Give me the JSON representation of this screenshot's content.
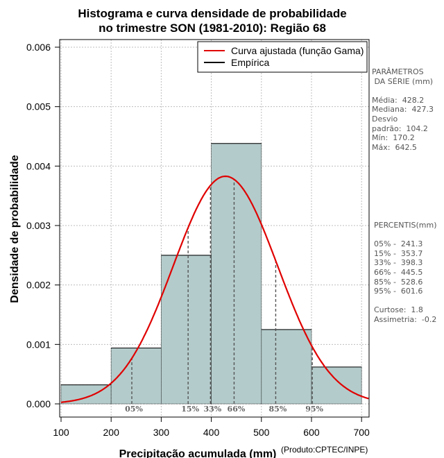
{
  "chart_data": {
    "type": "bar",
    "title_lines": [
      "Histograma e curva densidade de probabilidade",
      "no trimestre SON (1981-2010): Região 68"
    ],
    "xlabel": "Precipitação acumulada (mm)",
    "ylabel": "Densidade de probabilidade",
    "credit": "(Produto:CPTEC/INPE)",
    "xlim": [
      100,
      715
    ],
    "ylim": [
      0,
      0.0062
    ],
    "x_ticks": [
      100,
      200,
      300,
      400,
      500,
      600,
      700
    ],
    "x_tick_labels": [
      "100",
      "200",
      "300",
      "400",
      "500",
      "600",
      "700"
    ],
    "y_ticks": [
      0,
      0.001,
      0.002,
      0.003,
      0.004,
      0.005,
      0.006
    ],
    "y_tick_labels": [
      "0.000",
      "0.001",
      "0.002",
      "0.003",
      "0.004",
      "0.005",
      "0.006"
    ],
    "grid": true,
    "bins": [
      {
        "x0": 100,
        "x1": 200,
        "density": 0.00032
      },
      {
        "x0": 200,
        "x1": 300,
        "density": 0.00094
      },
      {
        "x0": 300,
        "x1": 400,
        "density": 0.0025
      },
      {
        "x0": 400,
        "x1": 500,
        "density": 0.00438
      },
      {
        "x0": 500,
        "x1": 600,
        "density": 0.00125
      },
      {
        "x0": 600,
        "x1": 700,
        "density": 0.00062
      }
    ],
    "bar_fill": "#b4cbcb",
    "curve_color": "#e00000",
    "curve": {
      "mean": 428.2,
      "sd": 104.2,
      "x_start": 100,
      "x_end": 715
    },
    "percentile_markers": [
      {
        "label": "05%",
        "x": 241.3
      },
      {
        "label": "15%",
        "x": 353.7
      },
      {
        "label": "33%",
        "x": 398.3
      },
      {
        "label": "66%",
        "x": 445.5
      },
      {
        "label": "85%",
        "x": 528.6
      },
      {
        "label": "95%",
        "x": 601.6
      }
    ],
    "legend": {
      "position": "top-right",
      "entries": [
        {
          "label": "Curva ajustada (função Gama)",
          "color": "#e00000"
        },
        {
          "label": "Empírica",
          "color": "#000000"
        }
      ]
    }
  },
  "sidebar": {
    "params": [
      "PARÂMETROS",
      " DA SÉRIE (mm)",
      "",
      "Média:  428.2",
      "Mediana:  427.3",
      "Desvio",
      "padrão:  104.2",
      "Mín:  170.2",
      "Máx:  642.5"
    ],
    "percentis": [
      "PERCENTIS(mm)",
      "",
      "05% -  241.3",
      "15% -  353.7",
      "33% -  398.3",
      "66% -  445.5",
      "85% -  528.6",
      "95% -  601.6",
      "",
      "Curtose:  1.8",
      "Assimetria:  -0.2"
    ]
  }
}
